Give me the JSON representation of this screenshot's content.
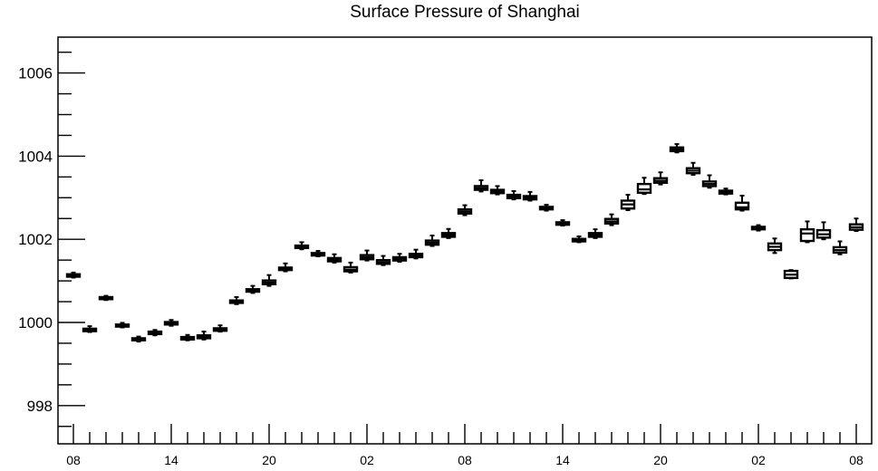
{
  "chart_data": {
    "type": "box",
    "title": "Surface Pressure of Shanghai",
    "xlabel": "",
    "ylabel": "",
    "ylim": [
      997.1,
      1006.9
    ],
    "grid": false,
    "y_ticks": [
      998,
      1000,
      1002,
      1004,
      1006
    ],
    "y_tick_labels": [
      "998",
      "1000",
      "1002",
      "1004",
      "1006"
    ],
    "x_tick_labels": [
      "08",
      "14",
      "20",
      "02",
      "08",
      "14",
      "20",
      "02",
      "08"
    ],
    "x_tick_hours": [
      0,
      6,
      12,
      18,
      24,
      30,
      36,
      42,
      48
    ],
    "boxes": [
      {
        "hour": 0,
        "whisker_low": 1001.08,
        "q1": 1001.1,
        "median": 1001.13,
        "q3": 1001.16,
        "whisker_high": 1001.2
      },
      {
        "hour": 1,
        "whisker_low": 999.77,
        "q1": 999.79,
        "median": 999.82,
        "q3": 999.85,
        "whisker_high": 999.91
      },
      {
        "hour": 2,
        "whisker_low": 1000.54,
        "q1": 1000.56,
        "median": 1000.59,
        "q3": 1000.61,
        "whisker_high": 1000.64
      },
      {
        "hour": 3,
        "whisker_low": 999.88,
        "q1": 999.9,
        "median": 999.92,
        "q3": 999.95,
        "whisker_high": 999.99
      },
      {
        "hour": 4,
        "whisker_low": 999.54,
        "q1": 999.57,
        "median": 999.59,
        "q3": 999.62,
        "whisker_high": 999.66
      },
      {
        "hour": 5,
        "whisker_low": 999.69,
        "q1": 999.72,
        "median": 999.75,
        "q3": 999.78,
        "whisker_high": 999.82
      },
      {
        "hour": 6,
        "whisker_low": 999.92,
        "q1": 999.95,
        "median": 999.98,
        "q3": 1000.01,
        "whisker_high": 1000.06
      },
      {
        "hour": 7,
        "whisker_low": 999.57,
        "q1": 999.59,
        "median": 999.62,
        "q3": 999.65,
        "whisker_high": 999.7
      },
      {
        "hour": 8,
        "whisker_low": 999.59,
        "q1": 999.62,
        "median": 999.65,
        "q3": 999.69,
        "whisker_high": 999.78
      },
      {
        "hour": 9,
        "whisker_low": 999.78,
        "q1": 999.8,
        "median": 999.83,
        "q3": 999.86,
        "whisker_high": 999.93
      },
      {
        "hour": 10,
        "whisker_low": 1000.44,
        "q1": 1000.47,
        "median": 1000.5,
        "q3": 1000.53,
        "whisker_high": 1000.61
      },
      {
        "hour": 11,
        "whisker_low": 1000.71,
        "q1": 1000.74,
        "median": 1000.77,
        "q3": 1000.8,
        "whisker_high": 1000.88
      },
      {
        "hour": 12,
        "whisker_low": 1000.88,
        "q1": 1000.92,
        "median": 1000.96,
        "q3": 1001.01,
        "whisker_high": 1001.14
      },
      {
        "hour": 13,
        "whisker_low": 1001.23,
        "q1": 1001.26,
        "median": 1001.29,
        "q3": 1001.32,
        "whisker_high": 1001.42
      },
      {
        "hour": 14,
        "whisker_low": 1001.76,
        "q1": 1001.79,
        "median": 1001.82,
        "q3": 1001.85,
        "whisker_high": 1001.93
      },
      {
        "hour": 15,
        "whisker_low": 1001.59,
        "q1": 1001.61,
        "median": 1001.64,
        "q3": 1001.67,
        "whisker_high": 1001.72
      },
      {
        "hour": 16,
        "whisker_low": 1001.44,
        "q1": 1001.47,
        "median": 1001.51,
        "q3": 1001.55,
        "whisker_high": 1001.64
      },
      {
        "hour": 17,
        "whisker_low": 1001.2,
        "q1": 1001.23,
        "median": 1001.27,
        "q3": 1001.33,
        "whisker_high": 1001.44
      },
      {
        "hour": 18,
        "whisker_low": 1001.49,
        "q1": 1001.52,
        "median": 1001.57,
        "q3": 1001.62,
        "whisker_high": 1001.73
      },
      {
        "hour": 19,
        "whisker_low": 1001.38,
        "q1": 1001.41,
        "median": 1001.45,
        "q3": 1001.5,
        "whisker_high": 1001.6
      },
      {
        "hour": 20,
        "whisker_low": 1001.46,
        "q1": 1001.49,
        "median": 1001.53,
        "q3": 1001.57,
        "whisker_high": 1001.65
      },
      {
        "hour": 21,
        "whisker_low": 1001.54,
        "q1": 1001.57,
        "median": 1001.61,
        "q3": 1001.65,
        "whisker_high": 1001.75
      },
      {
        "hour": 22,
        "whisker_low": 1001.84,
        "q1": 1001.87,
        "median": 1001.92,
        "q3": 1001.97,
        "whisker_high": 1002.09
      },
      {
        "hour": 23,
        "whisker_low": 1002.03,
        "q1": 1002.06,
        "median": 1002.1,
        "q3": 1002.15,
        "whisker_high": 1002.25
      },
      {
        "hour": 24,
        "whisker_low": 1002.58,
        "q1": 1002.62,
        "median": 1002.67,
        "q3": 1002.72,
        "whisker_high": 1002.82
      },
      {
        "hour": 25,
        "whisker_low": 1003.15,
        "q1": 1003.19,
        "median": 1003.23,
        "q3": 1003.28,
        "whisker_high": 1003.42
      },
      {
        "hour": 26,
        "whisker_low": 1003.08,
        "q1": 1003.11,
        "median": 1003.15,
        "q3": 1003.19,
        "whisker_high": 1003.28
      },
      {
        "hour": 27,
        "whisker_low": 1002.96,
        "q1": 1002.99,
        "median": 1003.03,
        "q3": 1003.07,
        "whisker_high": 1003.16
      },
      {
        "hour": 28,
        "whisker_low": 1002.93,
        "q1": 1002.96,
        "median": 1003.0,
        "q3": 1003.04,
        "whisker_high": 1003.14
      },
      {
        "hour": 29,
        "whisker_low": 1002.69,
        "q1": 1002.72,
        "median": 1002.75,
        "q3": 1002.78,
        "whisker_high": 1002.83
      },
      {
        "hour": 30,
        "whisker_low": 1002.33,
        "q1": 1002.35,
        "median": 1002.38,
        "q3": 1002.41,
        "whisker_high": 1002.46
      },
      {
        "hour": 31,
        "whisker_low": 1001.93,
        "q1": 1001.95,
        "median": 1001.98,
        "q3": 1002.01,
        "whisker_high": 1002.07
      },
      {
        "hour": 32,
        "whisker_low": 1002.03,
        "q1": 1002.06,
        "median": 1002.1,
        "q3": 1002.15,
        "whisker_high": 1002.24
      },
      {
        "hour": 33,
        "whisker_low": 1002.34,
        "q1": 1002.38,
        "median": 1002.43,
        "q3": 1002.49,
        "whisker_high": 1002.6
      },
      {
        "hour": 34,
        "whisker_low": 1002.7,
        "q1": 1002.74,
        "median": 1002.84,
        "q3": 1002.93,
        "whisker_high": 1003.07
      },
      {
        "hour": 35,
        "whisker_low": 1003.09,
        "q1": 1003.12,
        "median": 1003.2,
        "q3": 1003.33,
        "whisker_high": 1003.48
      },
      {
        "hour": 36,
        "whisker_low": 1003.32,
        "q1": 1003.36,
        "median": 1003.41,
        "q3": 1003.47,
        "whisker_high": 1003.61
      },
      {
        "hour": 37,
        "whisker_low": 1004.09,
        "q1": 1004.12,
        "median": 1004.16,
        "q3": 1004.21,
        "whisker_high": 1004.29
      },
      {
        "hour": 38,
        "whisker_low": 1003.55,
        "q1": 1003.59,
        "median": 1003.65,
        "q3": 1003.71,
        "whisker_high": 1003.84
      },
      {
        "hour": 39,
        "whisker_low": 1003.24,
        "q1": 1003.28,
        "median": 1003.33,
        "q3": 1003.39,
        "whisker_high": 1003.54
      },
      {
        "hour": 40,
        "whisker_low": 1003.08,
        "q1": 1003.1,
        "median": 1003.14,
        "q3": 1003.17,
        "whisker_high": 1003.22
      },
      {
        "hour": 41,
        "whisker_low": 1002.69,
        "q1": 1002.72,
        "median": 1002.77,
        "q3": 1002.88,
        "whisker_high": 1003.05
      },
      {
        "hour": 42,
        "whisker_low": 1002.21,
        "q1": 1002.24,
        "median": 1002.27,
        "q3": 1002.3,
        "whisker_high": 1002.34
      },
      {
        "hour": 43,
        "whisker_low": 1001.67,
        "q1": 1001.74,
        "median": 1001.82,
        "q3": 1001.9,
        "whisker_high": 1002.02
      },
      {
        "hour": 44,
        "whisker_low": 1001.06,
        "q1": 1001.07,
        "median": 1001.15,
        "q3": 1001.24,
        "whisker_high": 1001.26
      },
      {
        "hour": 45,
        "whisker_low": 1001.93,
        "q1": 1001.96,
        "median": 1002.14,
        "q3": 1002.24,
        "whisker_high": 1002.43
      },
      {
        "hour": 46,
        "whisker_low": 1002.0,
        "q1": 1002.04,
        "median": 1002.12,
        "q3": 1002.22,
        "whisker_high": 1002.41
      },
      {
        "hour": 47,
        "whisker_low": 1001.64,
        "q1": 1001.68,
        "median": 1001.74,
        "q3": 1001.81,
        "whisker_high": 1001.95
      },
      {
        "hour": 48,
        "whisker_low": 1002.2,
        "q1": 1002.23,
        "median": 1002.29,
        "q3": 1002.36,
        "whisker_high": 1002.5
      }
    ]
  }
}
